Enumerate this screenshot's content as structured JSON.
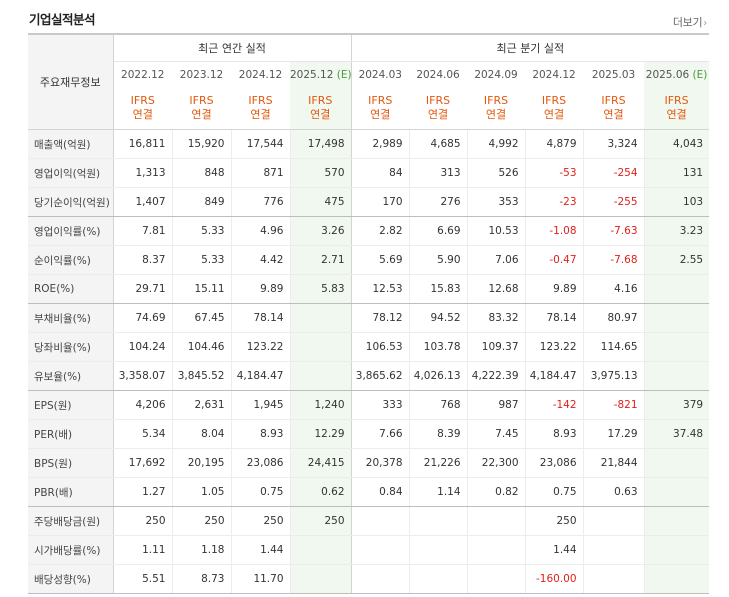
{
  "section_title": "기업실적분석",
  "more_link": "더보기",
  "table": {
    "corner_label": "주요재무정보",
    "group_annual": "최근 연간 실적",
    "group_quarter": "최근 분기 실적",
    "estimate_mark": "(E)",
    "ifrs_line1": "IFRS",
    "ifrs_line2": "연결",
    "periods": [
      {
        "label": "2022.12",
        "estimate": false
      },
      {
        "label": "2023.12",
        "estimate": false
      },
      {
        "label": "2024.12",
        "estimate": false
      },
      {
        "label": "2025.12",
        "estimate": true
      },
      {
        "label": "2024.03",
        "estimate": false
      },
      {
        "label": "2024.06",
        "estimate": false
      },
      {
        "label": "2024.09",
        "estimate": false
      },
      {
        "label": "2024.12",
        "estimate": false
      },
      {
        "label": "2025.03",
        "estimate": false
      },
      {
        "label": "2025.06",
        "estimate": true
      }
    ],
    "rows": [
      {
        "label": "매출액(억원)",
        "values": [
          "16,811",
          "15,920",
          "17,544",
          "17,498",
          "2,989",
          "4,685",
          "4,992",
          "4,879",
          "3,324",
          "4,043"
        ]
      },
      {
        "label": "영업이익(억원)",
        "values": [
          "1,313",
          "848",
          "871",
          "570",
          "84",
          "313",
          "526",
          "-53",
          "-254",
          "131"
        ]
      },
      {
        "label": "당기순이익(억원)",
        "values": [
          "1,407",
          "849",
          "776",
          "475",
          "170",
          "276",
          "353",
          "-23",
          "-255",
          "103"
        ]
      },
      {
        "label": "영업이익률(%)",
        "values": [
          "7.81",
          "5.33",
          "4.96",
          "3.26",
          "2.82",
          "6.69",
          "10.53",
          "-1.08",
          "-7.63",
          "3.23"
        ]
      },
      {
        "label": "순이익률(%)",
        "values": [
          "8.37",
          "5.33",
          "4.42",
          "2.71",
          "5.69",
          "5.90",
          "7.06",
          "-0.47",
          "-7.68",
          "2.55"
        ]
      },
      {
        "label": "ROE(%)",
        "values": [
          "29.71",
          "15.11",
          "9.89",
          "5.83",
          "12.53",
          "15.83",
          "12.68",
          "9.89",
          "4.16",
          ""
        ]
      },
      {
        "label": "부채비율(%)",
        "values": [
          "74.69",
          "67.45",
          "78.14",
          "",
          "78.12",
          "94.52",
          "83.32",
          "78.14",
          "80.97",
          ""
        ]
      },
      {
        "label": "당좌비율(%)",
        "values": [
          "104.24",
          "104.46",
          "123.22",
          "",
          "106.53",
          "103.78",
          "109.37",
          "123.22",
          "114.65",
          ""
        ]
      },
      {
        "label": "유보율(%)",
        "values": [
          "3,358.07",
          "3,845.52",
          "4,184.47",
          "",
          "3,865.62",
          "4,026.13",
          "4,222.39",
          "4,184.47",
          "3,975.13",
          ""
        ]
      },
      {
        "label": "EPS(원)",
        "values": [
          "4,206",
          "2,631",
          "1,945",
          "1,240",
          "333",
          "768",
          "987",
          "-142",
          "-821",
          "379"
        ]
      },
      {
        "label": "PER(배)",
        "values": [
          "5.34",
          "8.04",
          "8.93",
          "12.29",
          "7.66",
          "8.39",
          "7.45",
          "8.93",
          "17.29",
          "37.48"
        ]
      },
      {
        "label": "BPS(원)",
        "values": [
          "17,692",
          "20,195",
          "23,086",
          "24,415",
          "20,378",
          "21,226",
          "22,300",
          "23,086",
          "21,844",
          ""
        ]
      },
      {
        "label": "PBR(배)",
        "values": [
          "1.27",
          "1.05",
          "0.75",
          "0.62",
          "0.84",
          "1.14",
          "0.82",
          "0.75",
          "0.63",
          ""
        ]
      },
      {
        "label": "주당배당금(원)",
        "values": [
          "250",
          "250",
          "250",
          "250",
          "",
          "",
          "",
          "250",
          "",
          ""
        ]
      },
      {
        "label": "시가배당률(%)",
        "values": [
          "1.11",
          "1.18",
          "1.44",
          "",
          "",
          "",
          "",
          "1.44",
          "",
          ""
        ]
      },
      {
        "label": "배당성향(%)",
        "values": [
          "5.51",
          "8.73",
          "11.70",
          "",
          "",
          "",
          "",
          "-160.00",
          "",
          ""
        ]
      }
    ]
  },
  "colors": {
    "ifrs_orange": "#e2580e",
    "negative_red": "#e0201b",
    "estimate_green": "#4a9a3a",
    "estimate_bg": "#f1f8ef",
    "label_bg": "#f4f4f4"
  }
}
